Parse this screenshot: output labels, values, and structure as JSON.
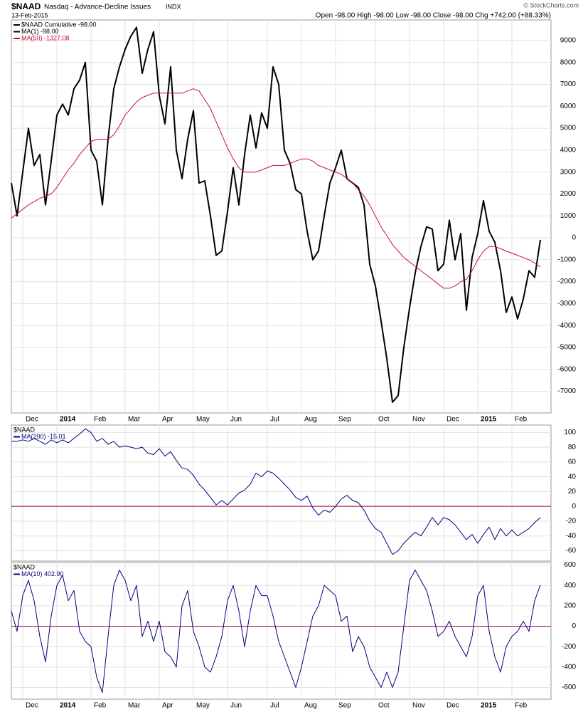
{
  "header": {
    "symbol": "$NAAD",
    "name": "Nasdaq - Advance-Decline Issues",
    "exchange": "INDX",
    "date": "13-Feb-2015",
    "copyright": "© StockCharts.com",
    "quote": "Open -98.00  High -98.00  Low -98.00  Close -98.00  Chg +742.00 (+88.33%)"
  },
  "chart_data": [
    {
      "type": "line",
      "grid": true,
      "categories": [
        null,
        null,
        "Dec",
        null,
        null,
        null,
        null,
        null,
        "2014",
        null,
        null,
        null,
        null,
        null,
        "Feb",
        null,
        null,
        null,
        null,
        null,
        "Mar",
        null,
        null,
        null,
        null,
        null,
        "Apr",
        null,
        null,
        null,
        null,
        null,
        "May",
        null,
        null,
        null,
        null,
        null,
        "Jun",
        null,
        null,
        null,
        null,
        null,
        null,
        "Jul",
        null,
        null,
        null,
        null,
        null,
        "Aug",
        null,
        null,
        null,
        null,
        null,
        "Sep",
        null,
        null,
        null,
        null,
        null,
        null,
        "Oct",
        null,
        null,
        null,
        null,
        null,
        "Nov",
        null,
        null,
        null,
        null,
        null,
        "Dec",
        null,
        null,
        null,
        null,
        null,
        "2015",
        null,
        null,
        null,
        null,
        null,
        "Feb",
        null,
        null,
        null,
        null,
        null
      ],
      "legend": [
        {
          "label": "$NAAD Cumulative -98.00",
          "color": "#000000"
        },
        {
          "label": "MA(1) -98.00",
          "color": "#000000"
        },
        {
          "label": "MA(50) -1327.08",
          "color": "#c8102e"
        }
      ],
      "ylim": [
        -7990,
        9940
      ],
      "yticks": [
        -7000,
        -6000,
        -5000,
        -4000,
        -3000,
        -2000,
        -1000,
        0,
        1000,
        2000,
        3000,
        4000,
        5000,
        6000,
        7000,
        8000,
        9000
      ],
      "series": [
        {
          "color": "#000000",
          "width": 2,
          "values": [
            2500,
            1000,
            3000,
            5000,
            3300,
            3800,
            1500,
            3500,
            5600,
            6100,
            5600,
            6800,
            7200,
            8000,
            4000,
            3500,
            1500,
            4500,
            6800,
            7800,
            8600,
            9200,
            9600,
            7500,
            8600,
            9400,
            6500,
            5200,
            7800,
            4000,
            2700,
            4500,
            5800,
            2500,
            2600,
            1000,
            -800,
            -600,
            1200,
            3200,
            1500,
            3800,
            5600,
            4100,
            5700,
            5000,
            7800,
            7000,
            4000,
            3400,
            2200,
            2000,
            300,
            -1000,
            -600,
            1000,
            2500,
            3200,
            4000,
            2700,
            2500,
            2300,
            1500,
            -1200,
            -2200,
            -3800,
            -5500,
            -7500,
            -7200,
            -5000,
            -3200,
            -1600,
            -400,
            500,
            400,
            -1500,
            -1200,
            800,
            -1000,
            200,
            -3300,
            -900,
            200,
            1700,
            300,
            -200,
            -1500,
            -3400,
            -2700,
            -3700,
            -2800,
            -1500,
            -1800,
            -98
          ]
        },
        {
          "color": "#c8102e",
          "width": 1,
          "values": [
            900,
            1100,
            1300,
            1500,
            1650,
            1800,
            1900,
            2000,
            2300,
            2700,
            3100,
            3400,
            3800,
            4100,
            4400,
            4500,
            4500,
            4500,
            4700,
            5100,
            5600,
            5900,
            6200,
            6400,
            6500,
            6600,
            6600,
            6600,
            6600,
            6600,
            6600,
            6700,
            6800,
            6700,
            6300,
            5900,
            5300,
            4700,
            4100,
            3600,
            3200,
            3000,
            3000,
            3000,
            3100,
            3200,
            3300,
            3300,
            3300,
            3400,
            3500,
            3600,
            3600,
            3500,
            3300,
            3200,
            3100,
            3000,
            2900,
            2700,
            2500,
            2200,
            1900,
            1500,
            1000,
            500,
            100,
            -300,
            -600,
            -900,
            -1100,
            -1300,
            -1500,
            -1700,
            -1900,
            -2100,
            -2300,
            -2300,
            -2200,
            -2000,
            -1900,
            -1500,
            -1000,
            -600,
            -400,
            -400,
            -500,
            -600,
            -700,
            -800,
            -900,
            -1000,
            -1150,
            -1327.08
          ]
        }
      ]
    },
    {
      "type": "line",
      "grid": true,
      "legend": [
        {
          "label": "$NAAD"
        },
        {
          "label": "MA(200) -15.01",
          "color": "#000080"
        }
      ],
      "ylim": [
        -74,
        110
      ],
      "yticks": [
        -60,
        -40,
        -20,
        0,
        20,
        40,
        60,
        80,
        100
      ],
      "hline": {
        "value": 0,
        "color": "#a0003c"
      },
      "series": [
        {
          "color": "#000080",
          "width": 1,
          "values": [
            88,
            88,
            90,
            88,
            92,
            88,
            84,
            90,
            86,
            90,
            86,
            92,
            98,
            105,
            100,
            88,
            92,
            84,
            88,
            80,
            82,
            80,
            78,
            80,
            72,
            70,
            78,
            68,
            74,
            62,
            52,
            50,
            42,
            30,
            22,
            12,
            2,
            8,
            2,
            10,
            18,
            22,
            30,
            45,
            40,
            48,
            45,
            38,
            30,
            22,
            12,
            8,
            14,
            -2,
            -12,
            -5,
            -8,
            0,
            10,
            15,
            8,
            5,
            -5,
            -20,
            -30,
            -35,
            -50,
            -65,
            -60,
            -50,
            -42,
            -35,
            -40,
            -28,
            -15,
            -25,
            -15,
            -18,
            -25,
            -35,
            -45,
            -38,
            -50,
            -38,
            -28,
            -45,
            -30,
            -40,
            -32,
            -40,
            -35,
            -30,
            -22,
            -15.01
          ]
        }
      ]
    },
    {
      "type": "line",
      "grid": true,
      "categories": [
        null,
        null,
        "Dec",
        null,
        null,
        null,
        null,
        null,
        "2014",
        null,
        null,
        null,
        null,
        null,
        "Feb",
        null,
        null,
        null,
        null,
        null,
        "Mar",
        null,
        null,
        null,
        null,
        null,
        "Apr",
        null,
        null,
        null,
        null,
        null,
        "May",
        null,
        null,
        null,
        null,
        null,
        "Jun",
        null,
        null,
        null,
        null,
        null,
        null,
        "Jul",
        null,
        null,
        null,
        null,
        null,
        "Aug",
        null,
        null,
        null,
        null,
        null,
        "Sep",
        null,
        null,
        null,
        null,
        null,
        null,
        "Oct",
        null,
        null,
        null,
        null,
        null,
        "Nov",
        null,
        null,
        null,
        null,
        null,
        "Dec",
        null,
        null,
        null,
        null,
        null,
        "2015",
        null,
        null,
        null,
        null,
        null,
        "Feb",
        null,
        null,
        null,
        null,
        null
      ],
      "legend": [
        {
          "label": "$NAAD"
        },
        {
          "label": "MA(10) 402.90",
          "color": "#000080"
        }
      ],
      "ylim": [
        -715,
        625
      ],
      "yticks": [
        -600,
        -400,
        -200,
        0,
        200,
        400,
        600
      ],
      "hline": {
        "value": 0,
        "color": "#a0003c"
      },
      "series": [
        {
          "color": "#000080",
          "width": 1,
          "values": [
            150,
            -50,
            300,
            450,
            250,
            -100,
            -350,
            100,
            400,
            500,
            250,
            350,
            -50,
            -150,
            -200,
            -500,
            -650,
            -100,
            400,
            550,
            450,
            250,
            400,
            -100,
            50,
            -150,
            50,
            -250,
            -300,
            -400,
            200,
            350,
            -50,
            -200,
            -400,
            -450,
            -300,
            -100,
            250,
            400,
            150,
            -200,
            150,
            400,
            300,
            300,
            100,
            -150,
            -300,
            -450,
            -600,
            -400,
            -150,
            100,
            200,
            400,
            350,
            300,
            50,
            100,
            -250,
            -100,
            -200,
            -400,
            -500,
            -600,
            -450,
            -600,
            -450,
            0,
            450,
            550,
            450,
            350,
            150,
            -100,
            -50,
            50,
            -100,
            -200,
            -300,
            -100,
            300,
            400,
            -50,
            -300,
            -450,
            -200,
            -100,
            -50,
            50,
            -50,
            250,
            402.9
          ]
        }
      ]
    }
  ]
}
